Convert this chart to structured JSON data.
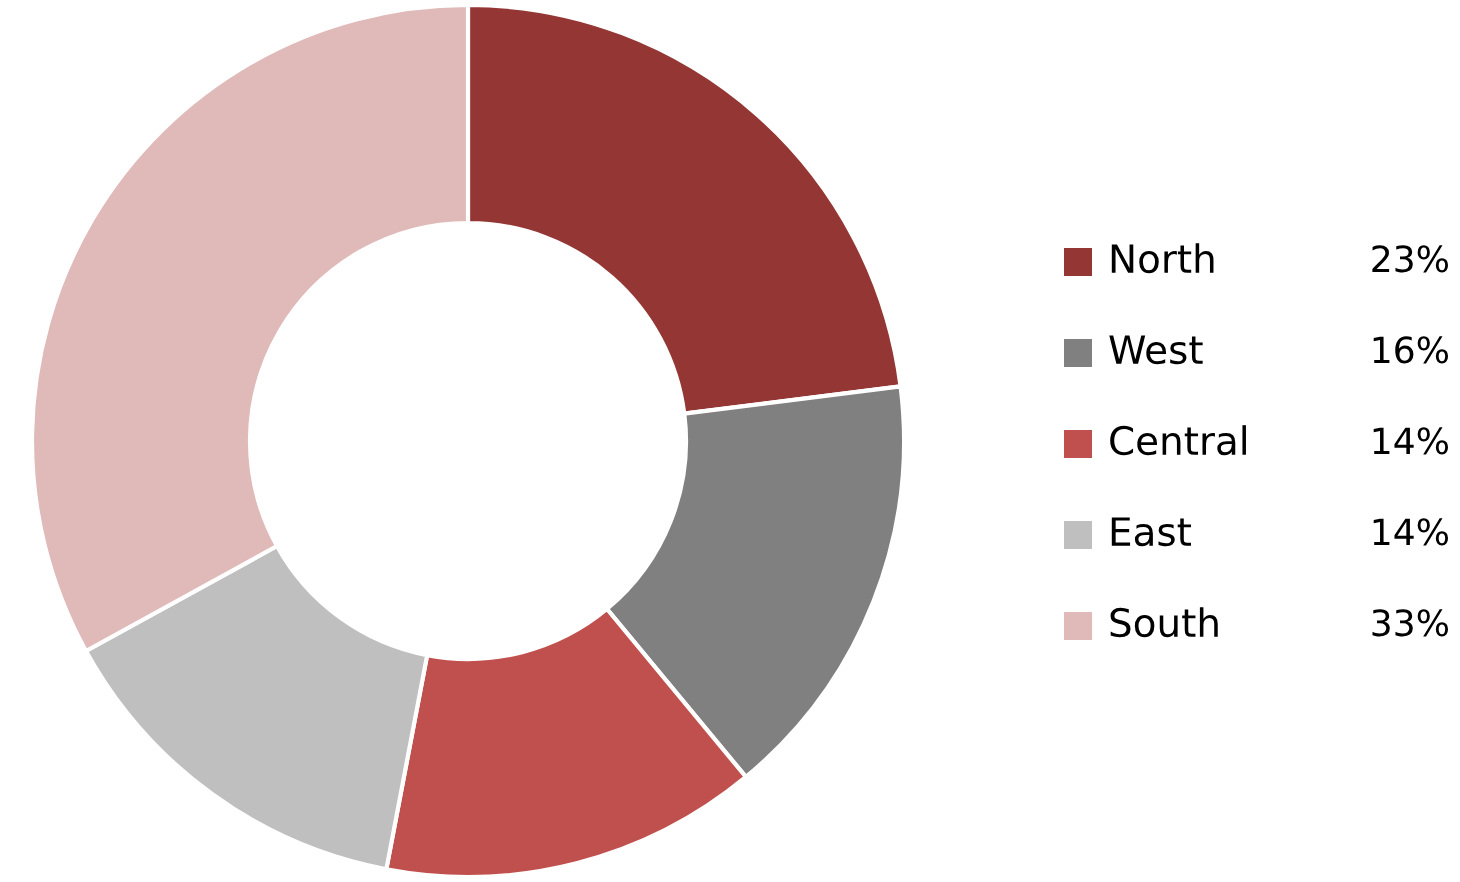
{
  "chart_data": {
    "type": "donut",
    "categories": [
      "North",
      "West",
      "Central",
      "East",
      "South"
    ],
    "values": [
      23,
      16,
      14,
      14,
      33
    ],
    "colors": [
      "#943634",
      "#808080",
      "#c0504d",
      "#bfbfbf",
      "#e0b9b9"
    ],
    "legend": "right",
    "value_labels": [
      "23%",
      "16%",
      "14%",
      "14%",
      "33%"
    ]
  }
}
